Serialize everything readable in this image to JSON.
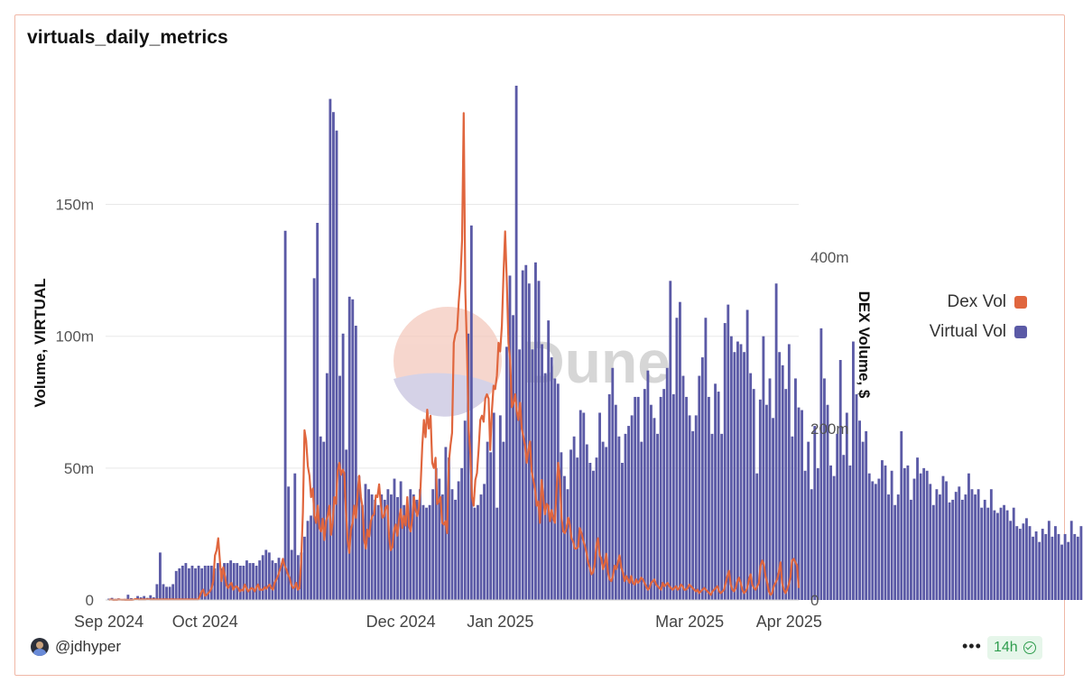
{
  "header": {
    "title": "virtuals_daily_metrics"
  },
  "footer": {
    "user": "@jdhyper",
    "freshness": "14h"
  },
  "watermark": {
    "text": "Dune"
  },
  "colors": {
    "virtual": "#5b5aa6",
    "dex": "#e0663e",
    "border": "#f0b7a6",
    "grid": "#e8e8e8"
  },
  "chart_data": {
    "type": "bar",
    "title": "virtuals_daily_metrics",
    "x_tick_labels": [
      "Sep 2024",
      "Oct 2024",
      "Dec 2024",
      "Jan 2025",
      "Mar 2025",
      "Apr 2025"
    ],
    "x_tick_dates": [
      "2024-09-01",
      "2024-10-01",
      "2024-12-01",
      "2025-01-01",
      "2025-03-01",
      "2025-04-01"
    ],
    "x_range": [
      "2024-08-31",
      "2025-04-04"
    ],
    "left_axis": {
      "label": "Volume, VIRTUAL",
      "ticks": [
        0,
        50,
        100,
        150
      ],
      "tick_labels": [
        "0",
        "50m",
        "100m",
        "150m"
      ],
      "range": [
        0,
        195
      ],
      "unit": "m"
    },
    "right_axis": {
      "label": "DEX Volume, $",
      "ticks": [
        0,
        200,
        400
      ],
      "tick_labels": [
        "0",
        "200m",
        "400m"
      ],
      "range": [
        0,
        600
      ],
      "unit": "m"
    },
    "legend": {
      "position": "right",
      "items": [
        "Dex Vol",
        "Virtual Vol"
      ]
    },
    "series": [
      {
        "name": "Virtual Vol",
        "type": "bar",
        "axis": "left",
        "start_date": "2024-09-01",
        "values": [
          0.5,
          0.8,
          0.4,
          0.6,
          0.3,
          0.4,
          2,
          0.7,
          0.5,
          1.5,
          1,
          1.5,
          0.8,
          1.8,
          1,
          6,
          18,
          6,
          5,
          5,
          6,
          11,
          12,
          13,
          14,
          12,
          13,
          12,
          13,
          12,
          13,
          13,
          13,
          12,
          14,
          12,
          14,
          14,
          15,
          14,
          14,
          13,
          13,
          15,
          14,
          14,
          13,
          15,
          17,
          19,
          18,
          15,
          14,
          16,
          14,
          140,
          43,
          19,
          48,
          17,
          18,
          24,
          30,
          32,
          122,
          143,
          62,
          60,
          86,
          190,
          185,
          178,
          85,
          101,
          57,
          115,
          114,
          104,
          47,
          36,
          44,
          42,
          40,
          38,
          36,
          40,
          38,
          42,
          40,
          46,
          39,
          45,
          36,
          35,
          42,
          40,
          38,
          42,
          36,
          35,
          36,
          42,
          50,
          46,
          40,
          58,
          54,
          42,
          38,
          45,
          50,
          68,
          101,
          142,
          35,
          36,
          40,
          44,
          60,
          56,
          71,
          35,
          70,
          60,
          96,
          123,
          108,
          195,
          95,
          125,
          127,
          120,
          95,
          128,
          121,
          97,
          86,
          106,
          92,
          84,
          82,
          56,
          47,
          42,
          57,
          62,
          54,
          72,
          71,
          59,
          52,
          49,
          54,
          71,
          60,
          58,
          78,
          88,
          74,
          62,
          52,
          63,
          66,
          70,
          77,
          77,
          60,
          80,
          87,
          74,
          69,
          63,
          77,
          80,
          88,
          121,
          78,
          107,
          113,
          85,
          77,
          70,
          64,
          70,
          85,
          92,
          107,
          77,
          63,
          82,
          79,
          63,
          105,
          112,
          100,
          94,
          98,
          97,
          94,
          110,
          86,
          80,
          48,
          76,
          100,
          74,
          84,
          69,
          120,
          94,
          89,
          80,
          97,
          62,
          84,
          73,
          72,
          49,
          60,
          42,
          66,
          50,
          103,
          84,
          74,
          51,
          47,
          63,
          91,
          55,
          71,
          51,
          98,
          78,
          68,
          60,
          64,
          48,
          45,
          44,
          46,
          53,
          51,
          40,
          49,
          36,
          40,
          64,
          50,
          51,
          38,
          46,
          54,
          48,
          50,
          49,
          44,
          36,
          42,
          40,
          47,
          45,
          37,
          38,
          41,
          43,
          38,
          40,
          48,
          42,
          40,
          42,
          35,
          38,
          35,
          42,
          34,
          33,
          35,
          36,
          34,
          30,
          35,
          28,
          27,
          29,
          31,
          28,
          24,
          26,
          22,
          27,
          25,
          30,
          24,
          28,
          25,
          21,
          25,
          22,
          30,
          25,
          24,
          28,
          23,
          35,
          40,
          47,
          46,
          36,
          30,
          48,
          30,
          45,
          34,
          25,
          27,
          32,
          50,
          40,
          42,
          33,
          45,
          44,
          36,
          29,
          16,
          10,
          8
        ]
      },
      {
        "name": "Dex Vol",
        "type": "line",
        "axis": "right",
        "start_date": "2024-09-01",
        "values": [
          0,
          0.5,
          0.3,
          0,
          0.2,
          0.1,
          0.5,
          0.3,
          0.2,
          0.2,
          0.1,
          0.2,
          0.1,
          0.2,
          0.1,
          0.3,
          1,
          0.8,
          0.5,
          0.5,
          0.6,
          0.5,
          0.5,
          0.6,
          0.7,
          0.5,
          0.5,
          0.6,
          0.5,
          0.5,
          0.5,
          0.5,
          0.5,
          0.5,
          0.6,
          0.5,
          0.5,
          0.5,
          0.6,
          0.5,
          0.5,
          0.5,
          0.5,
          0.6,
          0.5,
          0.5,
          0.5,
          0.6,
          0.5,
          0.5,
          0.6,
          0.5,
          0.5,
          0.5,
          0.5,
          5,
          10,
          12,
          5,
          6,
          8,
          10,
          14,
          22,
          52,
          58,
          72,
          45,
          22,
          38,
          28,
          17,
          14,
          18,
          20,
          12,
          15,
          16,
          14,
          10,
          12,
          11,
          18,
          14,
          10,
          12,
          14,
          13,
          10,
          15,
          18,
          12,
          12,
          12,
          15,
          13,
          16,
          18,
          14,
          12,
          20,
          24,
          28,
          34,
          40,
          48,
          40,
          36,
          30,
          26,
          18,
          14,
          15,
          20,
          12,
          14,
          45,
          102,
          198,
          186,
          156,
          145,
          120,
          130,
          98,
          90,
          110,
          84,
          80,
          95,
          70,
          92,
          98,
          110,
          76,
          90,
          120,
          112,
          150,
          160,
          146,
          152,
          148,
          104,
          70,
          55,
          82,
          90,
          110,
          96,
          124,
          145,
          120,
          108,
          70,
          60,
          82,
          74,
          92,
          98,
          100,
          122,
          120,
          135,
          112,
          96,
          98,
          108,
          110,
          74,
          58,
          62,
          82,
          88,
          75,
          94,
          106,
          84,
          98,
          87,
          120,
          86,
          80,
          95,
          120,
          105,
          98,
          108,
          132,
          180,
          210,
          190,
          222,
          200,
          215,
          160,
          154,
          166,
          112,
          115,
          120,
          90,
          88,
          92,
          78,
          160,
          180,
          195,
          300,
          310,
          315,
          348,
          372,
          420,
          568,
          360,
          290,
          200,
          170,
          120,
          110,
          140,
          148,
          175,
          210,
          215,
          208,
          235,
          240,
          235,
          175,
          220,
          250,
          246,
          262,
          300,
          290,
          320,
          380,
          430,
          370,
          300,
          280,
          225,
          230,
          240,
          220,
          210,
          230,
          200,
          190,
          180,
          160,
          175,
          185,
          150,
          140,
          130,
          110,
          115,
          90,
          140,
          120,
          100,
          112,
          110,
          92,
          105,
          95,
          90,
          130,
          160,
          140,
          96,
          80,
          78,
          84,
          96,
          88,
          72,
          68,
          60,
          60,
          62,
          84,
          78,
          70,
          64,
          56,
          44,
          38,
          30,
          32,
          42,
          64,
          72,
          52,
          48,
          36,
          42,
          54,
          32,
          24,
          22,
          28,
          40,
          36,
          44,
          52,
          38,
          32,
          22,
          28,
          24,
          20,
          28,
          20,
          18,
          24,
          20,
          22,
          26,
          24,
          20,
          16,
          12,
          14,
          20,
          22,
          24,
          18,
          16,
          14,
          12,
          20,
          16,
          18,
          20,
          16,
          14,
          12,
          14,
          16,
          12,
          14,
          18,
          16,
          12,
          12,
          14,
          18,
          16,
          14,
          12,
          10,
          12,
          8,
          10,
          12,
          14,
          12,
          10,
          8,
          6,
          10,
          12,
          14,
          16,
          10,
          8,
          10,
          12,
          20,
          28,
          34,
          18,
          12,
          10,
          14,
          22,
          26,
          20,
          12,
          8,
          10,
          14,
          24,
          30,
          18,
          14,
          12,
          16,
          20,
          40,
          46,
          42,
          28,
          20,
          10,
          6,
          8,
          16,
          20,
          24,
          32,
          44,
          20,
          12,
          8,
          12,
          18,
          26,
          46,
          48,
          44,
          40,
          14
        ]
      }
    ]
  }
}
